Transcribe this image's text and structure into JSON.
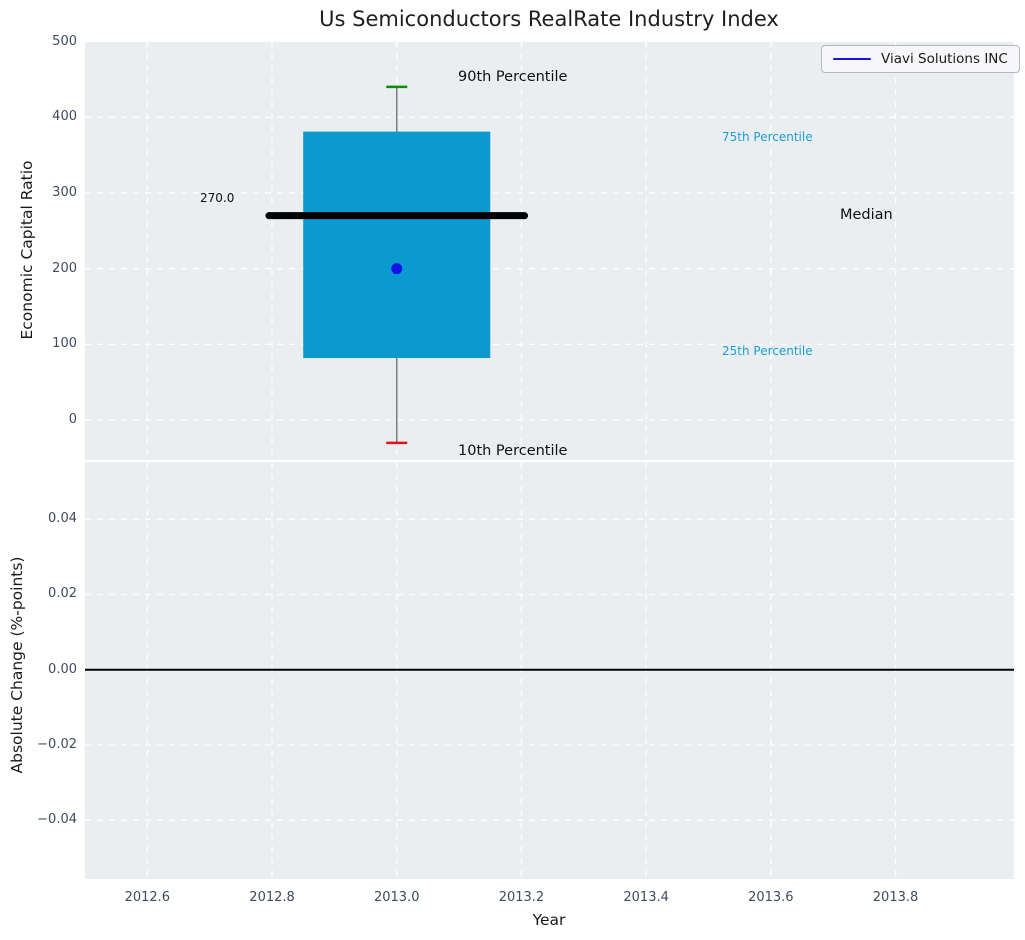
{
  "legend": {
    "label": "Viavi Solutions INC"
  },
  "colors": {
    "axes_background": "#eaeef1",
    "grid": "#ffffff",
    "box_fill": "#0a9ad0",
    "median_line": "#000000",
    "whisker_line": "#787d80",
    "cap_p90": "#128a12",
    "cap_p10": "#e31313",
    "company_point": "#1414e6",
    "zero_line": "#000000",
    "tick_text": "#3d4c61",
    "percentile_label_text": "#1d9fd3"
  },
  "chart_data": {
    "type": "boxplot",
    "title": "Us Semiconductors RealRate Industry Index",
    "x": {
      "label": "Year",
      "lim": [
        2012.5,
        2013.99
      ],
      "ticks": [
        2012.6,
        2012.8,
        2013.0,
        2013.2,
        2013.4,
        2013.6,
        2013.8
      ],
      "tick_labels": [
        "2012.6",
        "2012.8",
        "2013.0",
        "2013.2",
        "2013.4",
        "2013.6",
        "2013.8"
      ],
      "grid": true
    },
    "top_axes": {
      "ylabel": "Economic Capital Ratio",
      "ylim": [
        -52,
        500
      ],
      "yticks": [
        0,
        100,
        200,
        300,
        400,
        500
      ],
      "ytick_labels": [
        "0",
        "100",
        "200",
        "300",
        "400",
        "500"
      ],
      "grid": true,
      "box": {
        "x_center": 2013.0,
        "box_x_left": 2012.85,
        "box_x_right": 2013.15,
        "median_x_left": 2012.795,
        "median_x_right": 2013.205,
        "p10": -30,
        "p25": 82,
        "median": 270,
        "p75": 381,
        "p90": 440
      },
      "company_point": {
        "series": "Viavi Solutions INC",
        "x": 2013.0,
        "y": 200
      },
      "annotations": {
        "p90": "90th Percentile",
        "p75": "75th Percentile",
        "median": "Median",
        "p25": "25th Percentile",
        "p10": "10th Percentile",
        "median_value": "270.0"
      }
    },
    "bottom_axes": {
      "ylabel": "Absolute Change (%-points)",
      "ylim": [
        -0.0556,
        0.0552
      ],
      "yticks": [
        0.04,
        0.02,
        0.0,
        -0.02,
        -0.04
      ],
      "ytick_labels": [
        "0.04",
        "0.02",
        "0.00",
        "−0.02",
        "−0.04"
      ],
      "grid": true,
      "zero_line_y": 0.0
    }
  }
}
